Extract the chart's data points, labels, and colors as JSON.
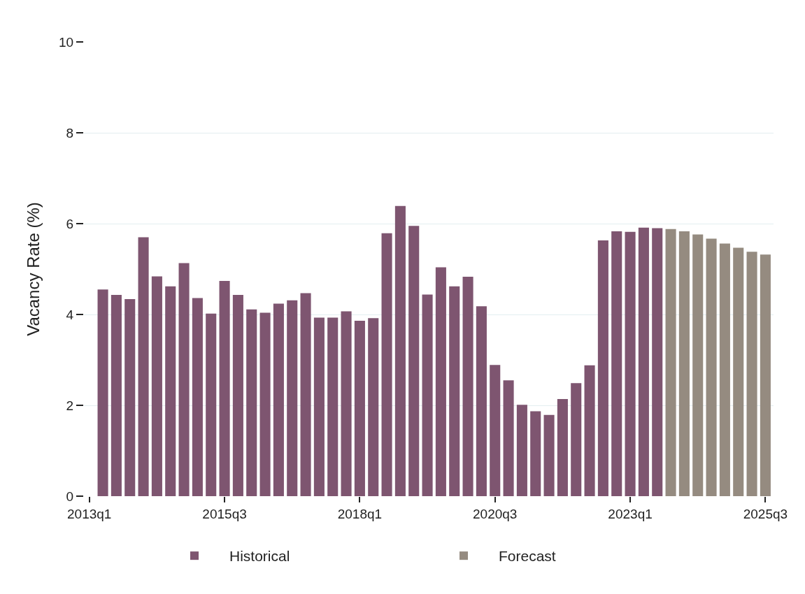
{
  "chart_data": {
    "type": "bar",
    "ylabel": "Vacancy Rate (%)",
    "categories": [
      "2013q1",
      null,
      null,
      null,
      null,
      null,
      null,
      null,
      null,
      null,
      "2015q3",
      null,
      null,
      null,
      null,
      null,
      null,
      null,
      null,
      null,
      "2018q1",
      null,
      null,
      null,
      null,
      null,
      null,
      null,
      null,
      null,
      "2020q3",
      null,
      null,
      null,
      null,
      null,
      null,
      null,
      null,
      null,
      "2023q1",
      null,
      null,
      null,
      null,
      null,
      null,
      null,
      null,
      null,
      "2025q3"
    ],
    "series": [
      {
        "name": "Historical",
        "color": "#7e5570",
        "values": [
          null,
          4.55,
          4.43,
          4.34,
          5.7,
          4.84,
          4.62,
          5.13,
          4.36,
          4.02,
          4.74,
          4.43,
          4.11,
          4.04,
          4.24,
          4.31,
          4.47,
          3.93,
          3.93,
          4.07,
          3.86,
          3.92,
          5.79,
          6.39,
          5.95,
          4.44,
          5.04,
          4.62,
          4.83,
          4.18,
          2.89,
          2.55,
          2.01,
          1.87,
          1.79,
          2.14,
          2.49,
          2.88,
          5.63,
          5.83,
          5.82,
          5.91,
          5.9,
          null,
          null,
          null,
          null,
          null,
          null,
          null,
          null
        ]
      },
      {
        "name": "Forecast",
        "color": "#958b80",
        "values": [
          null,
          null,
          null,
          null,
          null,
          null,
          null,
          null,
          null,
          null,
          null,
          null,
          null,
          null,
          null,
          null,
          null,
          null,
          null,
          null,
          null,
          null,
          null,
          null,
          null,
          null,
          null,
          null,
          null,
          null,
          null,
          null,
          null,
          null,
          null,
          null,
          null,
          null,
          null,
          null,
          null,
          null,
          null,
          5.88,
          5.83,
          5.76,
          5.67,
          5.56,
          5.47,
          5.38,
          5.32
        ]
      }
    ],
    "ylim": [
      0,
      10
    ],
    "yticks": [
      0,
      2,
      4,
      6,
      8,
      10
    ],
    "grid": "y",
    "legend": "bottom"
  }
}
